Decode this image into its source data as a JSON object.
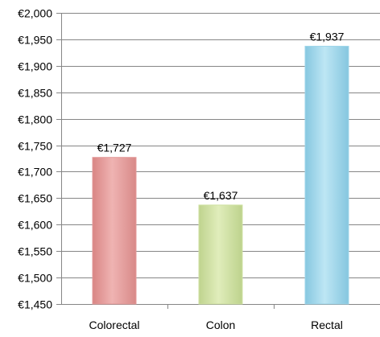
{
  "chart_data": {
    "type": "bar",
    "title": "",
    "xlabel": "",
    "ylabel": "",
    "categories": [
      "Colorectal",
      "Colon",
      "Rectal"
    ],
    "values": [
      1727,
      1637,
      1937
    ],
    "data_labels": [
      "€1,727",
      "€1,637",
      "€1,937"
    ],
    "ylim": [
      1450,
      2000
    ],
    "y_ticks": [
      1450,
      1500,
      1550,
      1600,
      1650,
      1700,
      1750,
      1800,
      1850,
      1900,
      1950,
      2000
    ],
    "y_tick_labels": [
      "€1,450",
      "€1,500",
      "€1,550",
      "€1,600",
      "€1,650",
      "€1,700",
      "€1,750",
      "€1,800",
      "€1,850",
      "€1,900",
      "€1,950",
      "€2,000"
    ],
    "bar_colors": [
      "#e39a99",
      "#cfe1a2",
      "#9fd6ea"
    ],
    "grid": "horizontal",
    "legend": "none"
  }
}
